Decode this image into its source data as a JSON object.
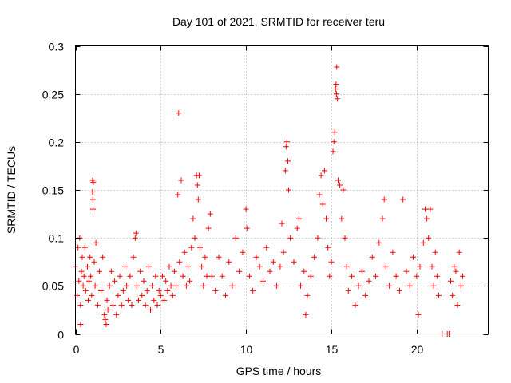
{
  "chart_data": {
    "type": "scatter",
    "title": "Day 101 of 2021, SRMTID for receiver teru",
    "xlabel": "GPS time / hours",
    "ylabel": "SRMTID / TECUs",
    "xlim": [
      0,
      24.2
    ],
    "ylim": [
      0,
      0.3
    ],
    "xticks": [
      0,
      5,
      10,
      15,
      20
    ],
    "xtick_labels": [
      "0",
      "5",
      "10",
      "15",
      "20"
    ],
    "yticks": [
      0,
      0.05,
      0.1,
      0.15,
      0.2,
      0.25,
      0.3
    ],
    "ytick_labels": [
      "0",
      "0.05",
      "0.1",
      "0.15",
      "0.2",
      "0.25",
      "0.3"
    ],
    "grid": true,
    "marker": "+",
    "color": "#ff0000",
    "series": [
      {
        "name": "SRMTID",
        "points": [
          [
            0.0,
            0.07
          ],
          [
            0.1,
            0.04
          ],
          [
            0.15,
            0.09
          ],
          [
            0.2,
            0.055
          ],
          [
            0.25,
            0.1
          ],
          [
            0.3,
            0.03
          ],
          [
            0.3,
            0.01
          ],
          [
            0.35,
            0.065
          ],
          [
            0.4,
            0.08
          ],
          [
            0.45,
            0.05
          ],
          [
            0.5,
            0.06
          ],
          [
            0.55,
            0.09
          ],
          [
            0.6,
            0.045
          ],
          [
            0.7,
            0.07
          ],
          [
            0.75,
            0.035
          ],
          [
            0.8,
            0.055
          ],
          [
            0.85,
            0.08
          ],
          [
            0.9,
            0.06
          ],
          [
            0.95,
            0.04
          ],
          [
            1.0,
            0.16
          ],
          [
            1.0,
            0.148
          ],
          [
            1.02,
            0.14
          ],
          [
            1.03,
            0.13
          ],
          [
            1.05,
            0.158
          ],
          [
            1.1,
            0.075
          ],
          [
            1.15,
            0.05
          ],
          [
            1.2,
            0.095
          ],
          [
            1.3,
            0.03
          ],
          [
            1.4,
            0.065
          ],
          [
            1.5,
            0.045
          ],
          [
            1.6,
            0.08
          ],
          [
            1.7,
            0.02
          ],
          [
            1.75,
            0.015
          ],
          [
            1.8,
            0.01
          ],
          [
            1.85,
            0.035
          ],
          [
            1.9,
            0.025
          ],
          [
            2.0,
            0.05
          ],
          [
            2.1,
            0.065
          ],
          [
            2.2,
            0.03
          ],
          [
            2.3,
            0.055
          ],
          [
            2.4,
            0.02
          ],
          [
            2.5,
            0.04
          ],
          [
            2.6,
            0.06
          ],
          [
            2.7,
            0.03
          ],
          [
            2.8,
            0.045
          ],
          [
            2.9,
            0.07
          ],
          [
            3.0,
            0.05
          ],
          [
            3.1,
            0.035
          ],
          [
            3.2,
            0.06
          ],
          [
            3.3,
            0.03
          ],
          [
            3.4,
            0.08
          ],
          [
            3.5,
            0.1
          ],
          [
            3.55,
            0.105
          ],
          [
            3.6,
            0.05
          ],
          [
            3.7,
            0.035
          ],
          [
            3.8,
            0.065
          ],
          [
            3.9,
            0.04
          ],
          [
            4.0,
            0.055
          ],
          [
            4.1,
            0.03
          ],
          [
            4.2,
            0.045
          ],
          [
            4.3,
            0.07
          ],
          [
            4.4,
            0.025
          ],
          [
            4.5,
            0.05
          ],
          [
            4.6,
            0.035
          ],
          [
            4.7,
            0.06
          ],
          [
            4.8,
            0.03
          ],
          [
            4.9,
            0.045
          ],
          [
            5.0,
            0.04
          ],
          [
            5.1,
            0.06
          ],
          [
            5.2,
            0.035
          ],
          [
            5.3,
            0.055
          ],
          [
            5.4,
            0.045
          ],
          [
            5.5,
            0.07
          ],
          [
            5.6,
            0.05
          ],
          [
            5.7,
            0.04
          ],
          [
            5.8,
            0.065
          ],
          [
            5.9,
            0.05
          ],
          [
            6.0,
            0.145
          ],
          [
            6.05,
            0.23
          ],
          [
            6.1,
            0.075
          ],
          [
            6.2,
            0.16
          ],
          [
            6.3,
            0.06
          ],
          [
            6.4,
            0.085
          ],
          [
            6.5,
            0.05
          ],
          [
            6.6,
            0.07
          ],
          [
            6.7,
            0.055
          ],
          [
            6.8,
            0.09
          ],
          [
            6.9,
            0.12
          ],
          [
            7.0,
            0.1
          ],
          [
            7.1,
            0.165
          ],
          [
            7.15,
            0.155
          ],
          [
            7.2,
            0.14
          ],
          [
            7.25,
            0.165
          ],
          [
            7.3,
            0.09
          ],
          [
            7.4,
            0.07
          ],
          [
            7.5,
            0.05
          ],
          [
            7.6,
            0.08
          ],
          [
            7.7,
            0.06
          ],
          [
            7.8,
            0.11
          ],
          [
            7.9,
            0.125
          ],
          [
            8.0,
            0.06
          ],
          [
            8.2,
            0.045
          ],
          [
            8.4,
            0.08
          ],
          [
            8.6,
            0.06
          ],
          [
            8.8,
            0.04
          ],
          [
            9.0,
            0.075
          ],
          [
            9.2,
            0.05
          ],
          [
            9.4,
            0.1
          ],
          [
            9.6,
            0.065
          ],
          [
            9.8,
            0.085
          ],
          [
            10.0,
            0.13
          ],
          [
            10.05,
            0.11
          ],
          [
            10.2,
            0.06
          ],
          [
            10.4,
            0.045
          ],
          [
            10.6,
            0.08
          ],
          [
            10.8,
            0.07
          ],
          [
            11.0,
            0.055
          ],
          [
            11.2,
            0.09
          ],
          [
            11.4,
            0.065
          ],
          [
            11.6,
            0.075
          ],
          [
            11.8,
            0.05
          ],
          [
            12.0,
            0.07
          ],
          [
            12.1,
            0.115
          ],
          [
            12.2,
            0.085
          ],
          [
            12.3,
            0.17
          ],
          [
            12.35,
            0.195
          ],
          [
            12.4,
            0.2
          ],
          [
            12.45,
            0.18
          ],
          [
            12.5,
            0.15
          ],
          [
            12.6,
            0.1
          ],
          [
            12.8,
            0.075
          ],
          [
            13.0,
            0.11
          ],
          [
            13.1,
            0.12
          ],
          [
            13.2,
            0.05
          ],
          [
            13.4,
            0.065
          ],
          [
            13.5,
            0.02
          ],
          [
            13.6,
            0.04
          ],
          [
            13.8,
            0.06
          ],
          [
            14.0,
            0.08
          ],
          [
            14.2,
            0.1
          ],
          [
            14.3,
            0.145
          ],
          [
            14.4,
            0.165
          ],
          [
            14.5,
            0.135
          ],
          [
            14.6,
            0.17
          ],
          [
            14.7,
            0.12
          ],
          [
            14.8,
            0.09
          ],
          [
            14.9,
            0.06
          ],
          [
            15.0,
            0.075
          ],
          [
            15.1,
            0.19
          ],
          [
            15.15,
            0.2
          ],
          [
            15.2,
            0.21
          ],
          [
            15.25,
            0.255
          ],
          [
            15.28,
            0.26
          ],
          [
            15.3,
            0.25
          ],
          [
            15.32,
            0.278
          ],
          [
            15.35,
            0.245
          ],
          [
            15.4,
            0.16
          ],
          [
            15.5,
            0.155
          ],
          [
            15.6,
            0.12
          ],
          [
            15.7,
            0.15
          ],
          [
            15.8,
            0.1
          ],
          [
            15.9,
            0.07
          ],
          [
            16.0,
            0.045
          ],
          [
            16.2,
            0.06
          ],
          [
            16.4,
            0.03
          ],
          [
            16.6,
            0.05
          ],
          [
            16.8,
            0.065
          ],
          [
            17.0,
            0.04
          ],
          [
            17.2,
            0.055
          ],
          [
            17.4,
            0.08
          ],
          [
            17.6,
            0.06
          ],
          [
            17.8,
            0.095
          ],
          [
            18.0,
            0.12
          ],
          [
            18.1,
            0.14
          ],
          [
            18.2,
            0.07
          ],
          [
            18.4,
            0.05
          ],
          [
            18.6,
            0.085
          ],
          [
            18.8,
            0.06
          ],
          [
            19.0,
            0.045
          ],
          [
            19.2,
            0.14
          ],
          [
            19.4,
            0.065
          ],
          [
            19.6,
            0.05
          ],
          [
            19.8,
            0.08
          ],
          [
            20.0,
            0.06
          ],
          [
            20.1,
            0.02
          ],
          [
            20.2,
            0.07
          ],
          [
            20.4,
            0.095
          ],
          [
            20.5,
            0.13
          ],
          [
            20.6,
            0.12
          ],
          [
            20.7,
            0.1
          ],
          [
            20.8,
            0.13
          ],
          [
            20.9,
            0.07
          ],
          [
            21.0,
            0.05
          ],
          [
            21.1,
            0.085
          ],
          [
            21.2,
            0.06
          ],
          [
            21.3,
            0.04
          ],
          [
            21.5,
            0.0
          ],
          [
            21.8,
            0.0
          ],
          [
            21.9,
            0.0
          ],
          [
            22.0,
            0.055
          ],
          [
            22.1,
            0.04
          ],
          [
            22.2,
            0.07
          ],
          [
            22.3,
            0.065
          ],
          [
            22.4,
            0.03
          ],
          [
            22.5,
            0.085
          ],
          [
            22.6,
            0.05
          ],
          [
            22.7,
            0.06
          ]
        ]
      }
    ]
  }
}
